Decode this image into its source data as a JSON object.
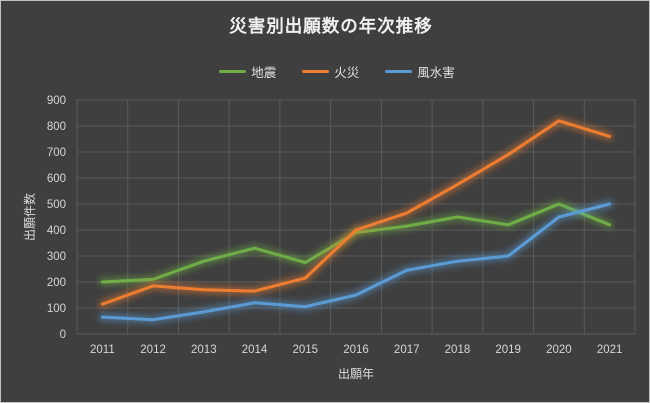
{
  "chart_data": {
    "type": "line",
    "title": "災害別出願数の年次推移",
    "xlabel": "出願年",
    "ylabel": "出願件数",
    "categories": [
      "2011",
      "2012",
      "2013",
      "2014",
      "2015",
      "2016",
      "2017",
      "2018",
      "2019",
      "2020",
      "2021"
    ],
    "series": [
      {
        "name": "地震",
        "color": "#70AD47",
        "values": [
          200,
          210,
          280,
          330,
          275,
          390,
          415,
          450,
          420,
          500,
          420
        ]
      },
      {
        "name": "火災",
        "color": "#ED7D31",
        "values": [
          115,
          185,
          170,
          165,
          215,
          400,
          465,
          575,
          690,
          820,
          760
        ]
      },
      {
        "name": "風水害",
        "color": "#5B9BD5",
        "values": [
          65,
          55,
          85,
          120,
          105,
          150,
          245,
          280,
          300,
          450,
          500
        ]
      }
    ],
    "ylim": [
      0,
      900
    ],
    "ytick_step": 100,
    "grid": "on",
    "legend_position": "top"
  },
  "colors": {
    "background": "#3F3F3F",
    "grid": "#5B5B5B",
    "tick_text": "#D6D6D6",
    "title_text": "#F0F0F0"
  }
}
